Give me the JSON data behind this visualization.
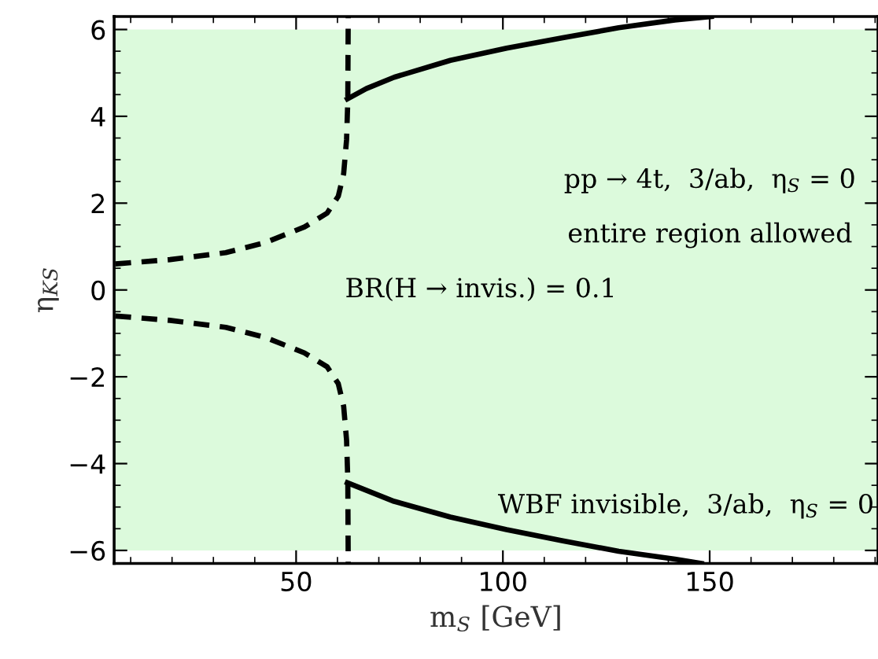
{
  "chart_data": {
    "type": "line",
    "xlabel": "m$_{S}$ [GeV]",
    "ylabel": "η$_{KS}$",
    "xlim": [
      6,
      190.7
    ],
    "ylim": [
      -6.3,
      6.3
    ],
    "xticks": [
      50,
      100,
      150
    ],
    "yticks": [
      -6,
      -4,
      -2,
      0,
      2,
      4,
      6
    ],
    "grid": false,
    "legend": false,
    "bands": [
      {
        "axis": "y",
        "from": -6,
        "to": 6,
        "color": "#dcfadc"
      }
    ],
    "series": [
      {
        "color": "#000000",
        "line_style": "dashed",
        "x": [
          6.3,
          19.5,
          33,
          42.5,
          52,
          57.5,
          60.2,
          61.5,
          62.2,
          62.5,
          62.6
        ],
        "values": [
          0.6,
          0.7,
          0.86,
          1.09,
          1.45,
          1.77,
          2.16,
          2.68,
          3.46,
          4.37,
          6.3
        ]
      },
      {
        "color": "#000000",
        "line_style": "dashed",
        "x": [
          6.3,
          19.5,
          33,
          42.5,
          52,
          57.5,
          60.2,
          61.5,
          62.2,
          62.5,
          62.6
        ],
        "values": [
          -0.6,
          -0.7,
          -0.86,
          -1.09,
          -1.45,
          -1.77,
          -2.16,
          -2.68,
          -3.46,
          -4.37,
          -6.3
        ]
      },
      {
        "color": "#000000",
        "line_style": "solid",
        "x": [
          62.4,
          67,
          73.7,
          87.3,
          100.9,
          114.5,
          128,
          141.6,
          150.4
        ],
        "values": [
          4.4,
          4.64,
          4.9,
          5.29,
          5.57,
          5.81,
          6.04,
          6.22,
          6.3
        ]
      },
      {
        "color": "#000000",
        "line_style": "solid",
        "x": [
          62.4,
          73.7,
          87.3,
          100.9,
          114.5,
          128,
          141.6,
          148
        ],
        "values": [
          -4.44,
          -4.87,
          -5.23,
          -5.52,
          -5.78,
          -6.02,
          -6.2,
          -6.3
        ]
      }
    ],
    "annotations": [
      "pp → 4t,  3/ab,  η$_{S}$ = 0",
      "entire region allowed",
      "BR(H → invis.) = 0.1",
      "WBF invisible,  3/ab,  η$_{S}$ = 0"
    ]
  }
}
